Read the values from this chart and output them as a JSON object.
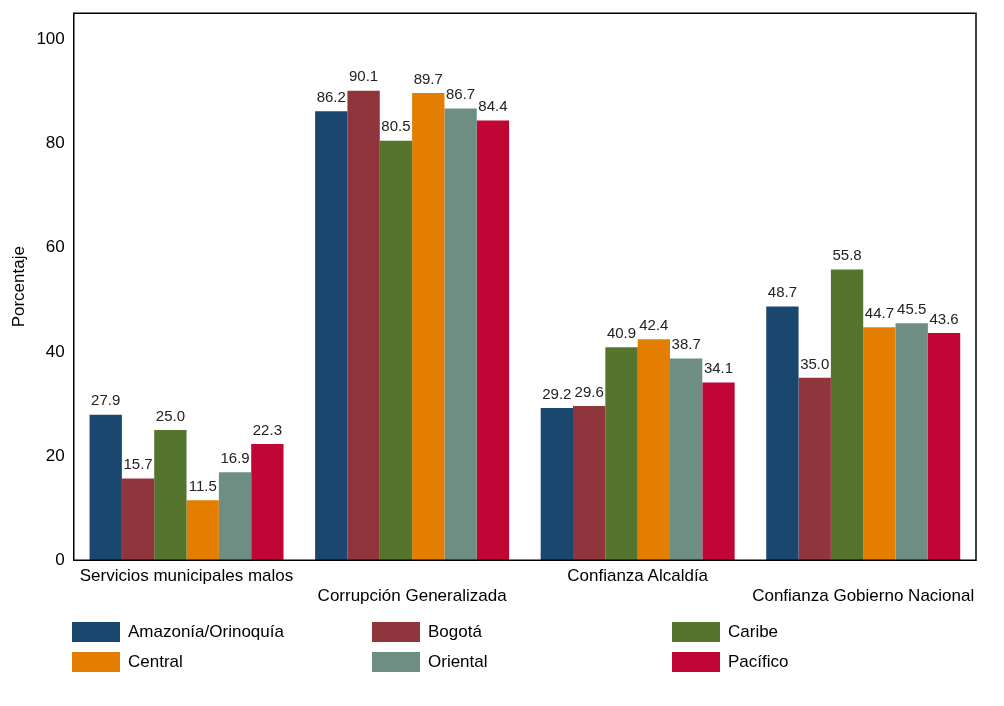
{
  "chart_data": {
    "type": "bar",
    "ylabel": "Porcentaje",
    "categories": [
      "Servicios municipales malos",
      "Corrupción Generalizada",
      "Confianza Alcaldía",
      "Confianza Gobierno Nacional"
    ],
    "ylim": [
      0,
      105
    ],
    "yticks": [
      0,
      20,
      40,
      60,
      80,
      100
    ],
    "grid": false,
    "legend": "bottom",
    "series": [
      {
        "name": "Amazonía/Orinoquía",
        "color": "#1a476f",
        "values": [
          27.9,
          86.2,
          29.2,
          48.7
        ],
        "value_labels": [
          "27.9",
          "86.2",
          "29.2",
          "48.7"
        ]
      },
      {
        "name": "Bogotá",
        "color": "#90353b",
        "values": [
          15.7,
          90.1,
          29.6,
          35.0
        ],
        "value_labels": [
          "15.7",
          "90.1",
          "29.6",
          "35.0"
        ]
      },
      {
        "name": "Caribe",
        "color": "#55752f",
        "values": [
          25.0,
          80.5,
          40.9,
          55.8
        ],
        "value_labels": [
          "25.0",
          "80.5",
          "40.9",
          "55.8"
        ]
      },
      {
        "name": "Central",
        "color": "#e37e00",
        "values": [
          11.5,
          89.7,
          42.4,
          44.7
        ],
        "value_labels": [
          "11.5",
          "89.7",
          "42.4",
          "44.7"
        ]
      },
      {
        "name": "Oriental",
        "color": "#6e8e84",
        "values": [
          16.9,
          86.7,
          38.7,
          45.5
        ],
        "value_labels": [
          "16.9",
          "86.7",
          "38.7",
          "45.5"
        ]
      },
      {
        "name": "Pacífico",
        "color": "#c10534",
        "values": [
          22.3,
          84.4,
          34.1,
          43.6
        ],
        "value_labels": [
          "22.3",
          "84.4",
          "34.1",
          "43.6"
        ]
      }
    ]
  }
}
